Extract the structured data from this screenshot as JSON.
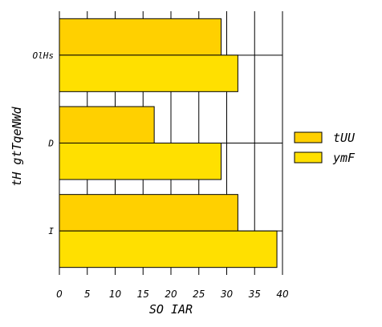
{
  "chart_data": {
    "type": "bar",
    "orientation": "horizontal",
    "categories": [
      "I",
      "D",
      "OlHs"
    ],
    "series": [
      {
        "name": "tUU",
        "values": [
          32,
          17,
          29
        ],
        "color": "#FFD000"
      },
      {
        "name": "ymF",
        "values": [
          39,
          29,
          32
        ],
        "color": "#FFE000"
      }
    ],
    "xlabel": "SO IAR",
    "ylabel": "tH gtTqeNWd",
    "xlim": [
      0,
      40
    ],
    "xticks": [
      0,
      5,
      10,
      15,
      20,
      25,
      30,
      35,
      40
    ],
    "grid": true,
    "legend": "right",
    "bar_edge_color": "#000000"
  }
}
